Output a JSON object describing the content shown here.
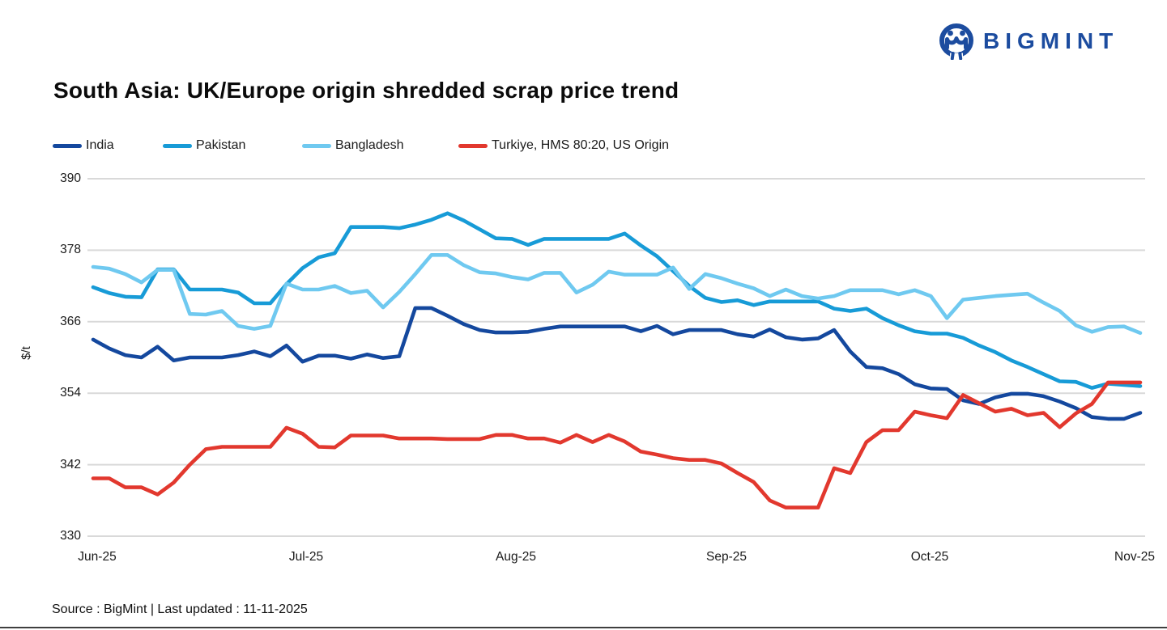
{
  "header": {
    "brand": "BIGMINT",
    "title": "South Asia: UK/Europe origin shredded scrap price trend"
  },
  "footer": {
    "source": "Source : BigMint | Last updated : 11-11-2025"
  },
  "colors": {
    "brand_blue": "#1c4c9f",
    "gridline": "#d9d9d9",
    "india": "#14489e",
    "pakistan": "#179bd7",
    "bangladesh": "#6fc9f0",
    "turkiye": "#e2382e"
  },
  "chart_data": {
    "type": "line",
    "title": "South Asia: UK/Europe origin shredded scrap price trend",
    "xlabel": "",
    "ylabel": "$/t",
    "ylim": [
      330,
      390
    ],
    "y_ticks": [
      "390",
      "378",
      "366",
      "354",
      "342",
      "330"
    ],
    "x_tick_labels": [
      "Jun-25",
      "Jul-25",
      "Aug-25",
      "Sep-25",
      "Oct-25",
      "Nov-25"
    ],
    "grid": "horizontal",
    "legend_position": "top",
    "series": [
      {
        "id": "india",
        "name": "India",
        "color": "#14489e",
        "values": [
          363,
          361.5,
          360.4,
          360,
          361.8,
          359.5,
          360,
          360,
          360,
          360.4,
          361,
          360.2,
          362,
          359.3,
          360.3,
          360.3,
          359.8,
          360.5,
          359.9,
          360.2,
          368.3,
          368.3,
          367,
          365.6,
          364.6,
          364.2,
          364.2,
          364.3,
          364.8,
          365.2,
          365.2,
          365.2,
          365.2,
          365.2,
          364.4,
          365.3,
          363.9,
          364.6,
          364.6,
          364.6,
          363.9,
          363.5,
          364.7,
          363.4,
          363,
          363.2,
          364.6,
          361,
          358.4,
          358.2,
          357.2,
          355.5,
          354.8,
          354.7,
          352.8,
          352.2,
          353.3,
          353.9,
          353.9,
          353.5,
          352.6,
          351.5,
          350,
          349.7,
          349.7,
          350.7
        ]
      },
      {
        "id": "pakistan",
        "name": "Pakistan",
        "color": "#179bd7",
        "values": [
          371.8,
          370.8,
          370.2,
          370.1,
          374.8,
          374.8,
          371.4,
          371.4,
          371.4,
          370.9,
          369.1,
          369.1,
          372.3,
          375,
          376.8,
          377.5,
          381.9,
          381.9,
          381.9,
          381.7,
          382.3,
          383.1,
          384.2,
          383,
          381.5,
          380,
          379.9,
          378.9,
          379.9,
          379.9,
          379.9,
          379.9,
          379.9,
          380.8,
          378.8,
          377,
          374.5,
          372,
          370,
          369.3,
          369.6,
          368.8,
          369.4,
          369.4,
          369.4,
          369.4,
          368.2,
          367.8,
          368.2,
          366.6,
          365.4,
          364.4,
          364,
          364,
          363.3,
          362,
          360.9,
          359.5,
          358.4,
          357.2,
          356,
          355.9,
          354.9,
          355.6,
          355.4,
          355.2
        ]
      },
      {
        "id": "bangladesh",
        "name": "Bangladesh",
        "color": "#6fc9f0",
        "values": [
          375.2,
          374.9,
          374,
          372.6,
          374.7,
          374.7,
          367.3,
          367.2,
          367.8,
          365.3,
          364.8,
          365.3,
          372.4,
          371.4,
          371.4,
          372,
          370.8,
          371.2,
          368.4,
          371,
          374,
          377.2,
          377.2,
          375.5,
          374.3,
          374.1,
          373.5,
          373.1,
          374.2,
          374.2,
          370.9,
          372.2,
          374.4,
          373.9,
          373.9,
          373.9,
          375.1,
          371.5,
          374,
          373.3,
          372.4,
          371.6,
          370.3,
          371.4,
          370.3,
          369.9,
          370.3,
          371.3,
          371.3,
          371.3,
          370.6,
          371.3,
          370.3,
          366.6,
          369.7,
          370,
          370.3,
          370.5,
          370.7,
          369.2,
          367.8,
          365.4,
          364.3,
          365.1,
          365.2,
          364.1
        ]
      },
      {
        "id": "turkiye",
        "name": "Turkiye, HMS 80:20, US Origin",
        "color": "#e2382e",
        "values": [
          339.7,
          339.7,
          338.2,
          338.2,
          337,
          339,
          342,
          344.6,
          345,
          345,
          345,
          345,
          348.2,
          347.2,
          345,
          344.9,
          346.9,
          346.9,
          346.9,
          346.4,
          346.4,
          346.4,
          346.3,
          346.3,
          346.3,
          347,
          347,
          346.4,
          346.4,
          345.7,
          347,
          345.8,
          347,
          345.9,
          344.2,
          343.7,
          343.1,
          342.8,
          342.8,
          342.2,
          340.6,
          339.1,
          336,
          334.8,
          334.8,
          334.8,
          341.4,
          340.6,
          345.8,
          347.8,
          347.8,
          350.9,
          350.3,
          349.8,
          353.7,
          352.3,
          350.9,
          351.4,
          350.3,
          350.7,
          348.3,
          350.6,
          352.2,
          355.8,
          355.8,
          355.8
        ]
      }
    ]
  }
}
